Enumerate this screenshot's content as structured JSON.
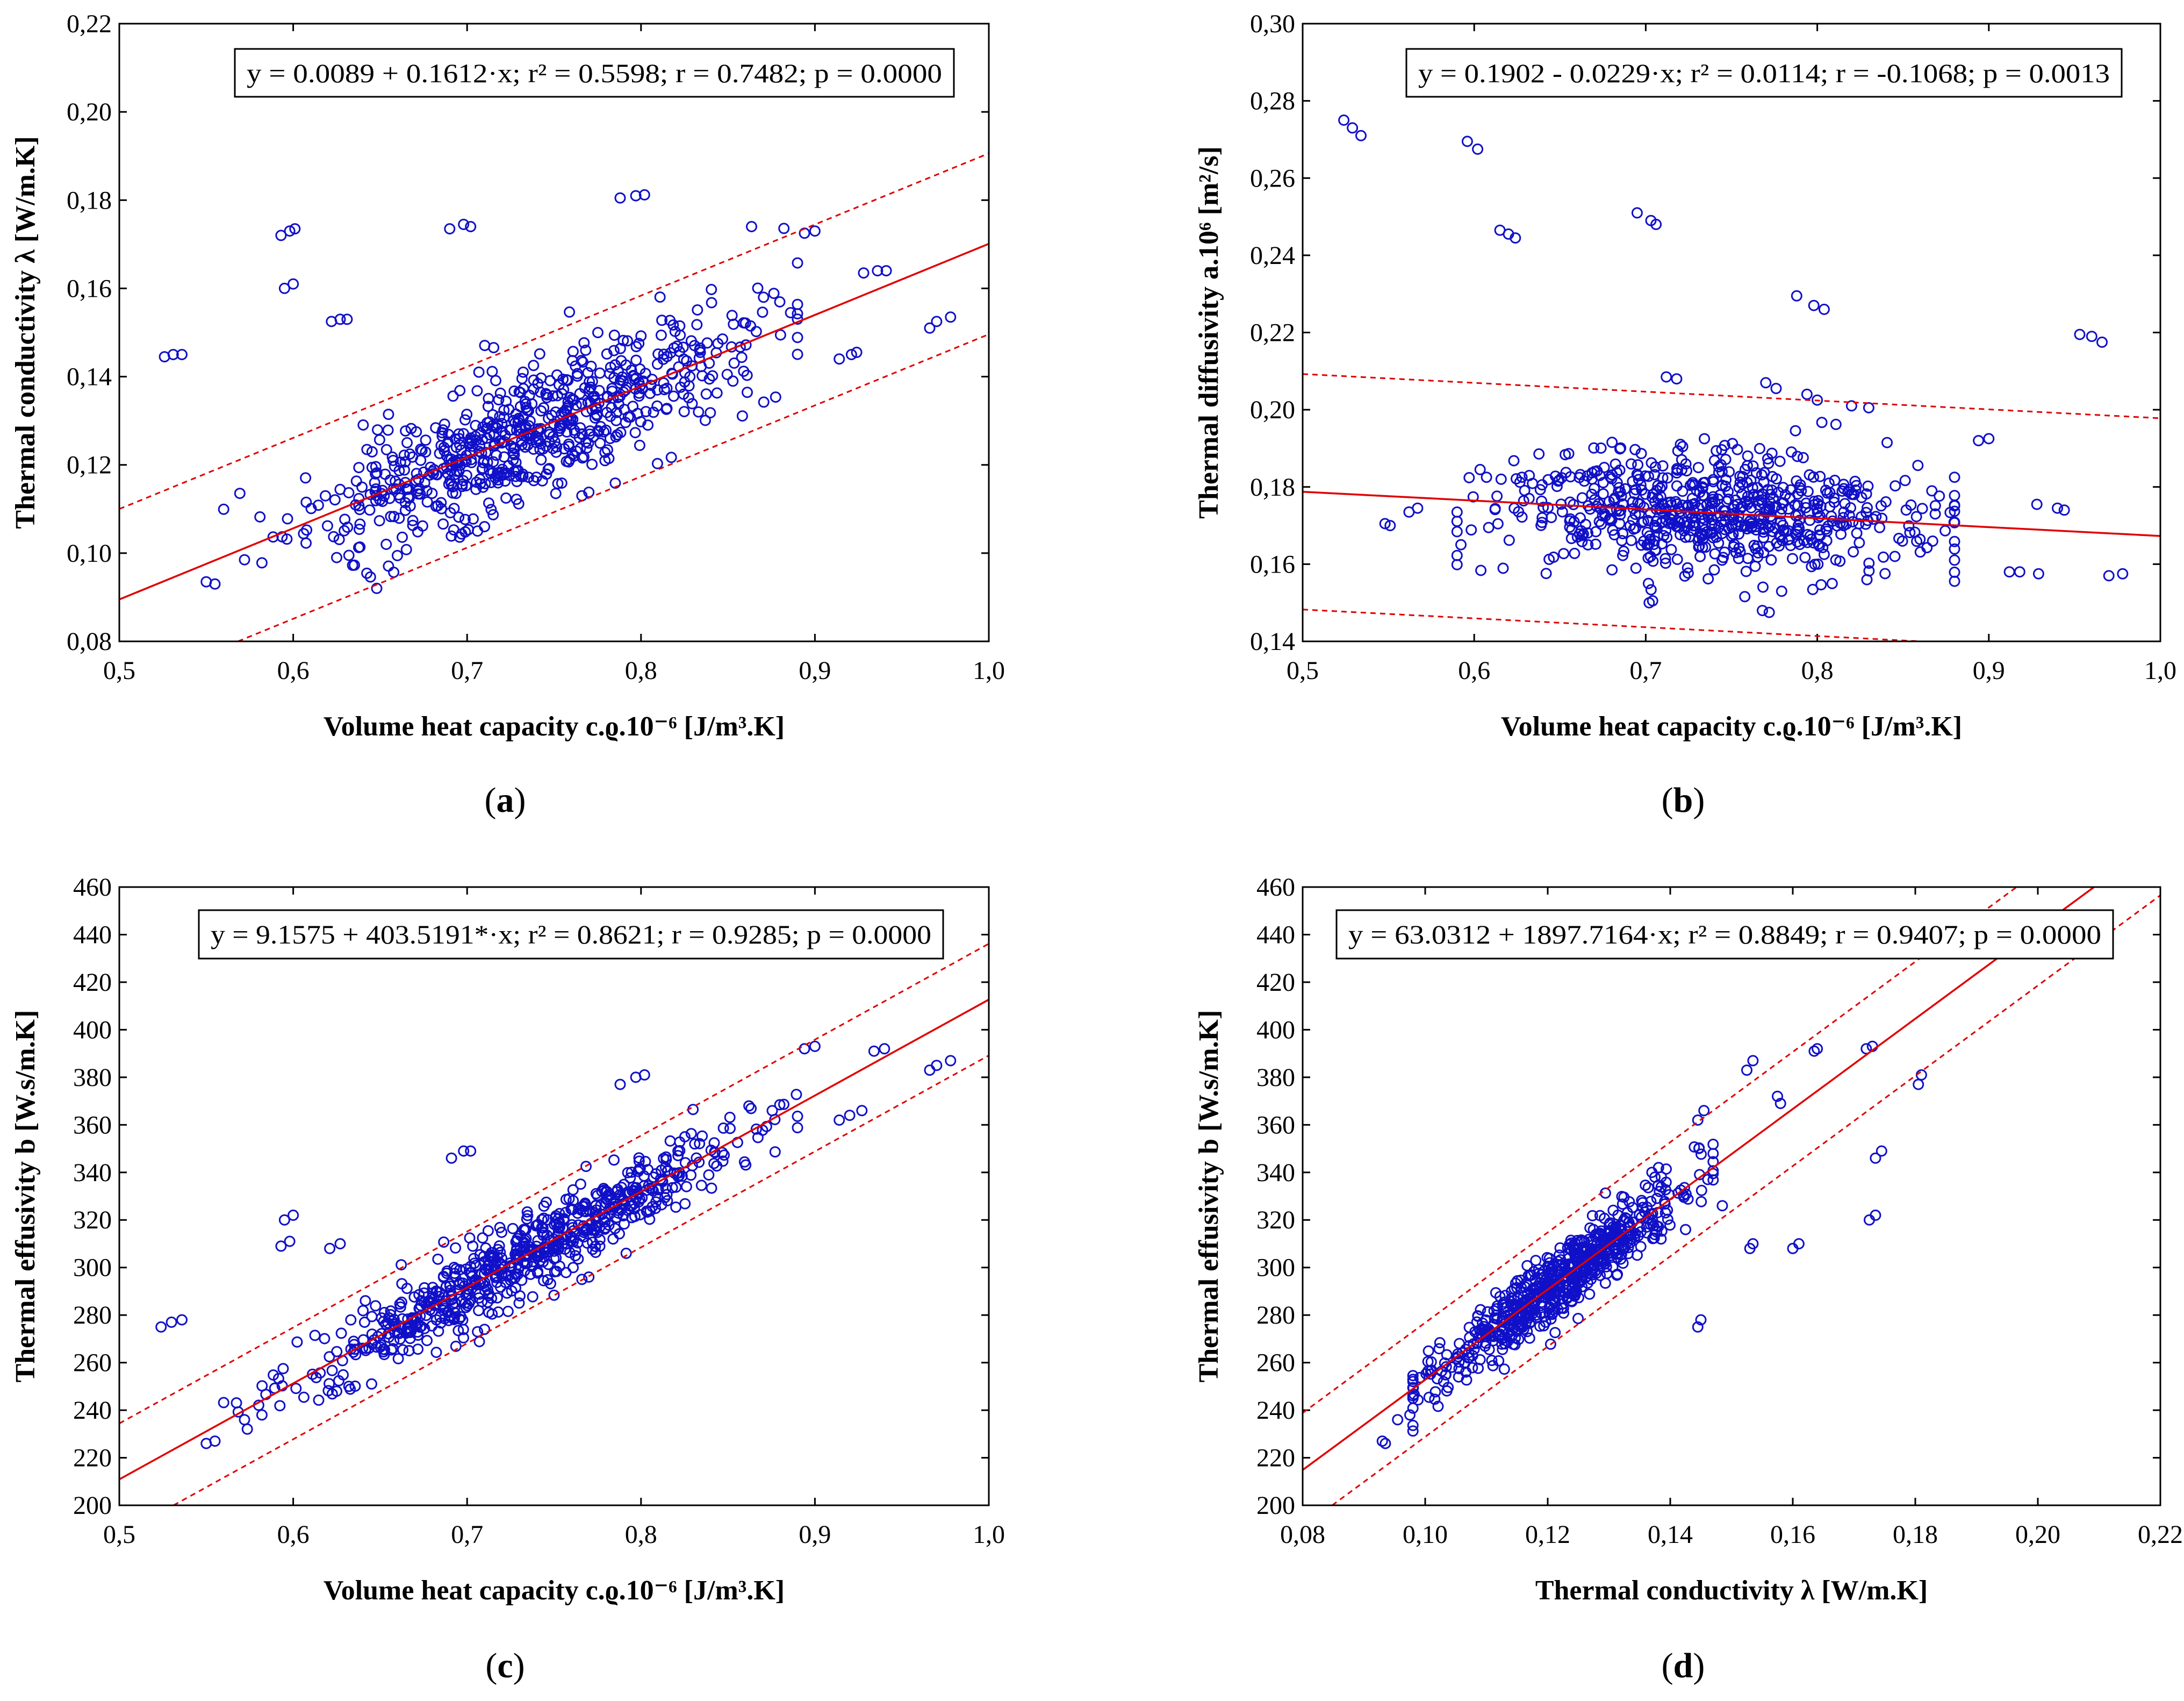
{
  "figure": {
    "colors": {
      "points": "#1010c8",
      "fit": "#e00000",
      "band": "#e00000",
      "frame": "#000000"
    }
  },
  "chart_data": [
    {
      "id": "a",
      "type": "scatter",
      "caption": "a",
      "equation": "y = 0.0089 + 0.1612·x;  r² = 0.5598; r = 0.7482; p = 0.0000",
      "xlabel": "Volume heat capacity c.ϱ.10⁻⁶ [J/m³.K]",
      "ylabel": "Thermal conductivity λ [W/m.K]",
      "xlim": [
        0.5,
        1.0
      ],
      "ylim": [
        0.08,
        0.22
      ],
      "xticks": [
        0.5,
        0.6,
        0.7,
        0.8,
        0.9,
        1.0
      ],
      "yticks": [
        0.08,
        0.1,
        0.12,
        0.14,
        0.16,
        0.18,
        0.2,
        0.22
      ],
      "xtick_labels": [
        "0,5",
        "0,6",
        "0,7",
        "0,8",
        "0,9",
        "1,0"
      ],
      "ytick_labels": [
        "0,08",
        "0,10",
        "0,12",
        "0,14",
        "0,16",
        "0,18",
        "0,20",
        "0,22"
      ],
      "fit": {
        "intercept": 0.0089,
        "slope": 0.1612
      },
      "band_offset": 0.0205,
      "outliers": [
        [
          0.526,
          0.1445
        ],
        [
          0.531,
          0.145
        ],
        [
          0.536,
          0.145
        ],
        [
          0.593,
          0.172
        ],
        [
          0.598,
          0.173
        ],
        [
          0.601,
          0.1735
        ],
        [
          0.595,
          0.16
        ],
        [
          0.6,
          0.161
        ],
        [
          0.622,
          0.1525
        ],
        [
          0.627,
          0.153
        ],
        [
          0.631,
          0.153
        ],
        [
          0.69,
          0.1735
        ],
        [
          0.698,
          0.1745
        ],
        [
          0.702,
          0.174
        ],
        [
          0.788,
          0.1805
        ],
        [
          0.797,
          0.181
        ],
        [
          0.802,
          0.1812
        ],
        [
          0.886,
          0.1545
        ],
        [
          0.894,
          0.1725
        ],
        [
          0.9,
          0.173
        ],
        [
          0.928,
          0.1635
        ],
        [
          0.936,
          0.164
        ],
        [
          0.941,
          0.164
        ],
        [
          0.966,
          0.151
        ],
        [
          0.97,
          0.1525
        ],
        [
          0.978,
          0.1535
        ],
        [
          0.914,
          0.144
        ],
        [
          0.921,
          0.145
        ],
        [
          0.924,
          0.1455
        ],
        [
          0.55,
          0.0935
        ],
        [
          0.555,
          0.093
        ],
        [
          0.572,
          0.0985
        ],
        [
          0.582,
          0.0978
        ],
        [
          0.766,
          0.113
        ],
        [
          0.77,
          0.1138
        ],
        [
          0.706,
          0.105
        ],
        [
          0.71,
          0.106
        ],
        [
          0.625,
          0.099
        ],
        [
          0.632,
          0.0995
        ]
      ],
      "cloud": {
        "n": 680,
        "x_center": 0.735,
        "x_spread": 0.062,
        "x_min": 0.56,
        "x_max": 0.89,
        "y_noise": 0.0075,
        "seed": 11
      }
    },
    {
      "id": "b",
      "type": "scatter",
      "caption": "b",
      "equation": "y = 0.1902 - 0.0229·x; r² = 0.0114; r = -0.1068; p = 0.0013",
      "xlabel": "Volume heat capacity c.ϱ.10⁻⁶ [J/m³.K]",
      "ylabel": "Thermal diffusivity a.10⁶ [m²/s]",
      "xlim": [
        0.5,
        1.0
      ],
      "ylim": [
        0.14,
        0.3
      ],
      "xticks": [
        0.5,
        0.6,
        0.7,
        0.8,
        0.9,
        1.0
      ],
      "yticks": [
        0.14,
        0.16,
        0.18,
        0.2,
        0.22,
        0.24,
        0.26,
        0.28,
        0.3
      ],
      "xtick_labels": [
        "0,5",
        "0,6",
        "0,7",
        "0,8",
        "0,9",
        "1,0"
      ],
      "ytick_labels": [
        "0,14",
        "0,16",
        "0,18",
        "0,20",
        "0,22",
        "0,24",
        "0,26",
        "0,28",
        "0,30"
      ],
      "fit": {
        "intercept": 0.1902,
        "slope": -0.0229
      },
      "band_offset": 0.0305,
      "outliers": [
        [
          0.524,
          0.275
        ],
        [
          0.529,
          0.273
        ],
        [
          0.534,
          0.271
        ],
        [
          0.596,
          0.2695
        ],
        [
          0.602,
          0.2675
        ],
        [
          0.615,
          0.2465
        ],
        [
          0.62,
          0.2455
        ],
        [
          0.624,
          0.2445
        ],
        [
          0.695,
          0.251
        ],
        [
          0.703,
          0.249
        ],
        [
          0.706,
          0.248
        ],
        [
          0.788,
          0.2295
        ],
        [
          0.798,
          0.227
        ],
        [
          0.804,
          0.226
        ],
        [
          0.953,
          0.2195
        ],
        [
          0.96,
          0.219
        ],
        [
          0.966,
          0.2175
        ],
        [
          0.712,
          0.2085
        ],
        [
          0.718,
          0.208
        ],
        [
          0.77,
          0.207
        ],
        [
          0.776,
          0.2055
        ],
        [
          0.794,
          0.204
        ],
        [
          0.8,
          0.2025
        ],
        [
          0.82,
          0.201
        ],
        [
          0.83,
          0.2005
        ],
        [
          0.894,
          0.192
        ],
        [
          0.9,
          0.1925
        ],
        [
          0.548,
          0.1705
        ],
        [
          0.551,
          0.17
        ],
        [
          0.562,
          0.1735
        ],
        [
          0.567,
          0.1745
        ],
        [
          0.702,
          0.15
        ],
        [
          0.704,
          0.1505
        ],
        [
          0.768,
          0.148
        ],
        [
          0.772,
          0.1475
        ],
        [
          0.912,
          0.158
        ],
        [
          0.918,
          0.158
        ],
        [
          0.929,
          0.1575
        ],
        [
          0.97,
          0.157
        ],
        [
          0.978,
          0.1575
        ],
        [
          0.928,
          0.1755
        ],
        [
          0.94,
          0.1745
        ],
        [
          0.944,
          0.174
        ]
      ],
      "cloud": {
        "n": 680,
        "x_center": 0.735,
        "x_spread": 0.06,
        "x_min": 0.59,
        "x_max": 0.88,
        "y_noise": 0.0075,
        "seed": 23
      }
    },
    {
      "id": "c",
      "type": "scatter",
      "caption": "c",
      "equation": "y = 9.1575 + 403.5191*·x; r² = 0.8621; r = 0.9285; p = 0.0000",
      "xlabel": "Volume heat capacity c.ϱ.10⁻⁶ [J/m³.K]",
      "ylabel": "Thermal effusivity b [W.s/m.K]",
      "xlim": [
        0.5,
        1.0
      ],
      "ylim": [
        200,
        460
      ],
      "xticks": [
        0.5,
        0.6,
        0.7,
        0.8,
        0.9,
        1.0
      ],
      "yticks": [
        200,
        220,
        240,
        260,
        280,
        300,
        320,
        340,
        360,
        380,
        400,
        420,
        440,
        460
      ],
      "xtick_labels": [
        "0,5",
        "0,6",
        "0,7",
        "0,8",
        "0,9",
        "1,0"
      ],
      "ytick_labels": [
        "200",
        "220",
        "240",
        "260",
        "280",
        "300",
        "320",
        "340",
        "360",
        "380",
        "400",
        "420",
        "440",
        "460"
      ],
      "fit": {
        "intercept": 9.1575,
        "slope": 403.5191
      },
      "band_offset": 23.5,
      "outliers": [
        [
          0.524,
          275
        ],
        [
          0.53,
          277
        ],
        [
          0.536,
          278
        ],
        [
          0.593,
          309
        ],
        [
          0.598,
          311
        ],
        [
          0.595,
          320
        ],
        [
          0.6,
          322
        ],
        [
          0.621,
          308
        ],
        [
          0.627,
          310
        ],
        [
          0.691,
          346
        ],
        [
          0.698,
          349
        ],
        [
          0.702,
          349
        ],
        [
          0.788,
          377
        ],
        [
          0.797,
          380
        ],
        [
          0.802,
          381
        ],
        [
          0.894,
          392
        ],
        [
          0.9,
          393
        ],
        [
          0.934,
          391
        ],
        [
          0.94,
          392
        ],
        [
          0.966,
          383
        ],
        [
          0.97,
          385
        ],
        [
          0.978,
          387
        ],
        [
          0.914,
          362
        ],
        [
          0.92,
          364
        ],
        [
          0.927,
          366
        ],
        [
          0.55,
          226
        ],
        [
          0.555,
          227
        ],
        [
          0.572,
          236
        ],
        [
          0.582,
          238
        ],
        [
          0.766,
          295
        ],
        [
          0.77,
          296
        ],
        [
          0.706,
          273
        ],
        [
          0.71,
          274
        ],
        [
          0.625,
          248
        ],
        [
          0.632,
          250
        ]
      ],
      "cloud": {
        "n": 680,
        "x_center": 0.735,
        "x_spread": 0.062,
        "x_min": 0.56,
        "x_max": 0.89,
        "y_noise": 8,
        "seed": 37
      }
    },
    {
      "id": "d",
      "type": "scatter",
      "caption": "d",
      "equation": "y = 63.0312 + 1897.7164·x; r² = 0.8849; r = 0.9407; p = 0.0000",
      "xlabel": "Thermal conductivity λ [W/m.K]",
      "ylabel": "Thermal effusivity b [W.s/m.K]",
      "xlim": [
        0.08,
        0.22
      ],
      "ylim": [
        200,
        460
      ],
      "xticks": [
        0.08,
        0.1,
        0.12,
        0.14,
        0.16,
        0.18,
        0.2,
        0.22
      ],
      "yticks": [
        200,
        220,
        240,
        260,
        280,
        300,
        320,
        340,
        360,
        380,
        400,
        420,
        440,
        460
      ],
      "xtick_labels": [
        "0,08",
        "0,10",
        "0,12",
        "0,14",
        "0,16",
        "0,18",
        "0,20",
        "0,22"
      ],
      "ytick_labels": [
        "200",
        "220",
        "240",
        "260",
        "280",
        "300",
        "320",
        "340",
        "360",
        "380",
        "400",
        "420",
        "440",
        "460"
      ],
      "fit": {
        "intercept": 63.0312,
        "slope": 1897.7164
      },
      "band_offset": 24,
      "outliers": [
        [
          0.1445,
          275
        ],
        [
          0.145,
          278
        ],
        [
          0.153,
          308
        ],
        [
          0.1535,
          310
        ],
        [
          0.16,
          308
        ],
        [
          0.161,
          310
        ],
        [
          0.1725,
          320
        ],
        [
          0.1735,
          322
        ],
        [
          0.1735,
          346
        ],
        [
          0.1745,
          349
        ],
        [
          0.1805,
          377
        ],
        [
          0.181,
          381
        ],
        [
          0.172,
          392
        ],
        [
          0.173,
          393
        ],
        [
          0.1635,
          391
        ],
        [
          0.164,
          392
        ],
        [
          0.1525,
          383
        ],
        [
          0.1535,
          387
        ],
        [
          0.1445,
          362
        ],
        [
          0.1455,
          366
        ],
        [
          0.1575,
          372
        ],
        [
          0.158,
          369
        ],
        [
          0.1375,
          338
        ],
        [
          0.1385,
          312
        ],
        [
          0.1485,
          326
        ],
        [
          0.0935,
          226
        ],
        [
          0.093,
          227
        ],
        [
          0.0955,
          236
        ],
        [
          0.0975,
          238
        ]
      ],
      "cloud": {
        "n": 680,
        "x_center": 0.122,
        "x_spread": 0.01,
        "x_min": 0.098,
        "x_max": 0.147,
        "y_noise": 7,
        "seed": 53
      }
    }
  ]
}
